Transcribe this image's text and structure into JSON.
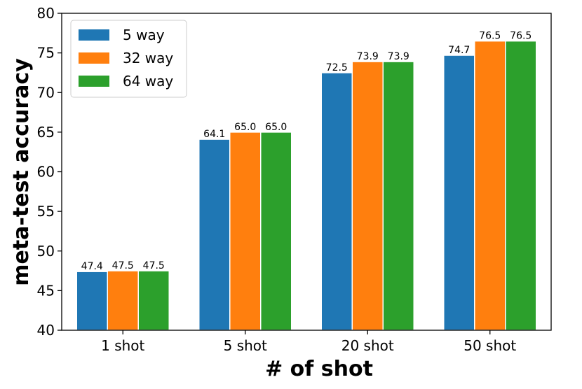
{
  "chart_data": {
    "type": "bar",
    "title": "",
    "xlabel": "# of shot",
    "ylabel": "meta-test accuracy",
    "categories": [
      "1 shot",
      "5 shot",
      "20 shot",
      "50 shot"
    ],
    "ylim": [
      40,
      80
    ],
    "yticks": [
      40,
      45,
      50,
      55,
      60,
      65,
      70,
      75,
      80
    ],
    "grid": false,
    "legend_position": "upper-left",
    "series": [
      {
        "name": "5 way",
        "color": "#1f77b4",
        "values": [
          47.4,
          64.1,
          72.5,
          74.7
        ],
        "labels": [
          "47.4",
          "64.1",
          "72.5",
          "74.7"
        ]
      },
      {
        "name": "32 way",
        "color": "#ff7f0e",
        "values": [
          47.5,
          65.0,
          73.9,
          76.5
        ],
        "labels": [
          "47.5",
          "65.0",
          "73.9",
          "76.5"
        ]
      },
      {
        "name": "64 way",
        "color": "#2ca02c",
        "values": [
          47.5,
          65.0,
          73.9,
          76.5
        ],
        "labels": [
          "47.5",
          "65.0",
          "73.9",
          "76.5"
        ]
      }
    ]
  }
}
